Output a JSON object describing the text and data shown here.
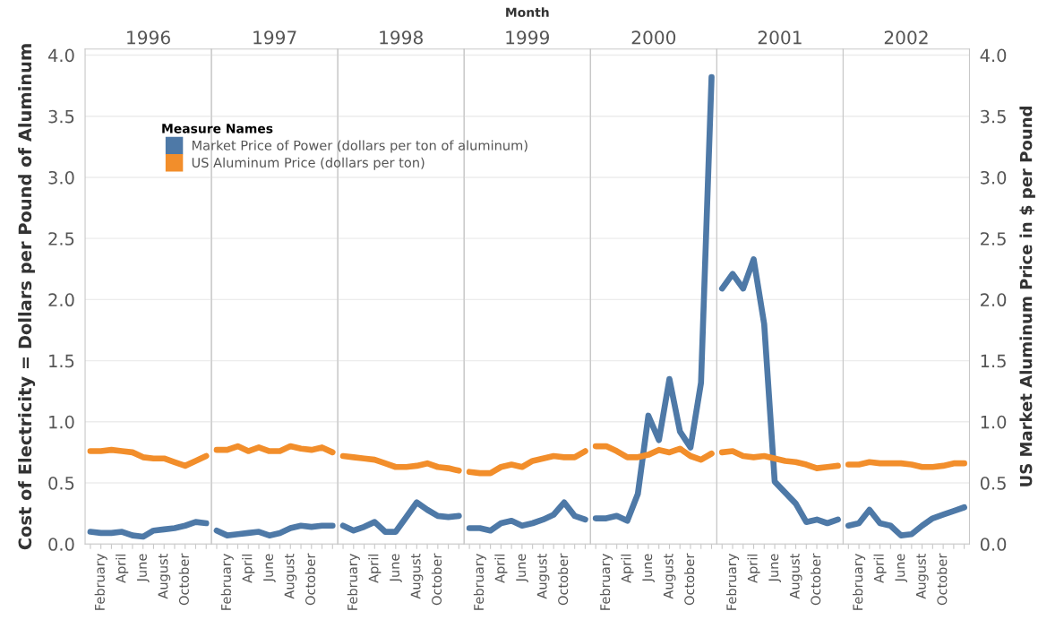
{
  "chart_data": [
    {
      "type": "line",
      "title": "1996",
      "ylabel": "Cost of Electricity = Dollars per Pound of Aluminum",
      "legend_title": "Measure Names",
      "legend": "top right",
      "grid": "y",
      "tick_labels": "xy",
      "categories": [
        null,
        "February",
        null,
        "April",
        null,
        "June",
        null,
        "August",
        null,
        "October",
        null,
        null
      ],
      "ylim": [
        0,
        4.05
      ],
      "yticks": [
        {
          "value": 0,
          "label": "0.0"
        },
        {
          "value": 0.5,
          "label": "0.5"
        },
        {
          "value": 1,
          "label": "1.0"
        },
        {
          "value": 1.5,
          "label": "1.5"
        },
        {
          "value": 2,
          "label": "2.0"
        },
        {
          "value": 2.5,
          "label": "2.5"
        },
        {
          "value": 3,
          "label": "3.0"
        },
        {
          "value": 3.5,
          "label": "3.5"
        },
        {
          "value": 4,
          "label": "4.0"
        }
      ],
      "series": [
        {
          "name": "Market Price of Power (dollars per ton of aluminum)",
          "color": "#4e79a7",
          "values": [
            0.1,
            0.09,
            0.09,
            0.1,
            0.07,
            0.06,
            0.11,
            0.12,
            0.13,
            0.15,
            0.18,
            0.17
          ]
        },
        {
          "name": "US Aluminum Price (dollars per ton)",
          "color": "#f28e2b",
          "values": [
            0.76,
            0.76,
            0.77,
            0.76,
            0.75,
            0.71,
            0.7,
            0.7,
            0.67,
            0.64,
            0.68,
            0.72
          ]
        }
      ]
    },
    {
      "type": "line",
      "title": "1997",
      "grid": "y",
      "tick_labels": "x",
      "categories": [
        null,
        "February",
        null,
        "April",
        null,
        "June",
        null,
        "August",
        null,
        "October",
        null,
        null
      ],
      "ylim": [
        0,
        4.05
      ],
      "yticks": [
        0,
        0.5,
        1,
        1.5,
        2,
        2.5,
        3,
        3.5,
        4
      ],
      "series": [
        {
          "color": "#4e79a7",
          "values": [
            0.11,
            0.07,
            0.08,
            0.09,
            0.1,
            0.07,
            0.09,
            0.13,
            0.15,
            0.14,
            0.15,
            0.15
          ]
        },
        {
          "color": "#f28e2b",
          "values": [
            0.77,
            0.77,
            0.8,
            0.76,
            0.79,
            0.76,
            0.76,
            0.8,
            0.78,
            0.77,
            0.79,
            0.75
          ]
        }
      ]
    },
    {
      "type": "line",
      "title": "1998",
      "grid": "y",
      "tick_labels": "x",
      "categories": [
        null,
        "February",
        null,
        "April",
        null,
        "June",
        null,
        "August",
        null,
        "October",
        null,
        null
      ],
      "ylim": [
        0,
        4.05
      ],
      "yticks": [
        0,
        0.5,
        1,
        1.5,
        2,
        2.5,
        3,
        3.5,
        4
      ],
      "series": [
        {
          "color": "#4e79a7",
          "values": [
            0.15,
            0.11,
            0.14,
            0.18,
            0.1,
            0.1,
            0.22,
            0.34,
            0.28,
            0.23,
            0.22,
            0.23
          ]
        },
        {
          "color": "#f28e2b",
          "values": [
            0.72,
            0.71,
            0.7,
            0.69,
            0.66,
            0.63,
            0.63,
            0.64,
            0.66,
            0.63,
            0.62,
            0.6
          ]
        }
      ]
    },
    {
      "type": "line",
      "title": "1999",
      "grid": "y",
      "tick_labels": "x",
      "annotations": [
        "Month"
      ],
      "categories": [
        null,
        "February",
        null,
        "April",
        null,
        "June",
        null,
        "August",
        null,
        "October",
        null,
        null
      ],
      "ylim": [
        0,
        4.05
      ],
      "yticks": [
        0,
        0.5,
        1,
        1.5,
        2,
        2.5,
        3,
        3.5,
        4
      ],
      "series": [
        {
          "color": "#4e79a7",
          "values": [
            0.13,
            0.13,
            0.11,
            0.17,
            0.19,
            0.15,
            0.17,
            0.2,
            0.24,
            0.34,
            0.23,
            0.2
          ]
        },
        {
          "color": "#f28e2b",
          "values": [
            0.59,
            0.58,
            0.58,
            0.63,
            0.65,
            0.63,
            0.68,
            0.7,
            0.72,
            0.71,
            0.71,
            0.76
          ]
        }
      ]
    },
    {
      "type": "line",
      "title": "2000",
      "grid": "y",
      "tick_labels": "x",
      "categories": [
        null,
        "February",
        null,
        "April",
        null,
        "June",
        null,
        "August",
        null,
        "October",
        null,
        null
      ],
      "ylim": [
        0,
        4.05
      ],
      "yticks": [
        0,
        0.5,
        1,
        1.5,
        2,
        2.5,
        3,
        3.5,
        4
      ],
      "series": [
        {
          "color": "#4e79a7",
          "values": [
            0.21,
            0.21,
            0.23,
            0.19,
            0.41,
            1.05,
            0.85,
            1.35,
            0.92,
            0.79,
            1.32,
            3.82
          ]
        },
        {
          "color": "#f28e2b",
          "values": [
            0.8,
            0.8,
            0.76,
            0.71,
            0.71,
            0.73,
            0.77,
            0.75,
            0.78,
            0.72,
            0.69,
            0.74
          ]
        }
      ]
    },
    {
      "type": "line",
      "title": "2001",
      "grid": "y",
      "tick_labels": "x",
      "categories": [
        null,
        "February",
        null,
        "April",
        null,
        "June",
        null,
        "August",
        null,
        "October",
        null,
        null
      ],
      "ylim": [
        0,
        4.05
      ],
      "yticks": [
        0,
        0.5,
        1,
        1.5,
        2,
        2.5,
        3,
        3.5,
        4
      ],
      "series": [
        {
          "color": "#4e79a7",
          "values": [
            2.09,
            2.21,
            2.09,
            2.33,
            1.8,
            0.51,
            0.42,
            0.33,
            0.18,
            0.2,
            0.17,
            0.2
          ]
        },
        {
          "color": "#f28e2b",
          "values": [
            0.75,
            0.76,
            0.72,
            0.71,
            0.72,
            0.7,
            0.68,
            0.67,
            0.65,
            0.62,
            0.63,
            0.64
          ]
        }
      ]
    },
    {
      "type": "line",
      "title": "2002",
      "y2label": "US Market Aluminum Price in $ per Pound",
      "grid": "y",
      "tick_labels": "xy",
      "categories": [
        null,
        "February",
        null,
        "April",
        null,
        "June",
        null,
        "August",
        null,
        "October",
        null,
        null
      ],
      "ylim": [
        0,
        4.05
      ],
      "yticks": [
        {
          "value": 0,
          "label": "0.0"
        },
        {
          "value": 0.5,
          "label": "0.5"
        },
        {
          "value": 1,
          "label": "1.0"
        },
        {
          "value": 1.5,
          "label": "1.5"
        },
        {
          "value": 2,
          "label": "2.0"
        },
        {
          "value": 2.5,
          "label": "2.5"
        },
        {
          "value": 3,
          "label": "3.0"
        },
        {
          "value": 3.5,
          "label": "3.5"
        },
        {
          "value": 4,
          "label": "4.0"
        }
      ],
      "series": [
        {
          "color": "#4e79a7",
          "values": [
            0.15,
            0.17,
            0.28,
            0.17,
            0.15,
            0.07,
            0.08,
            0.15,
            0.21,
            0.24,
            0.27,
            0.3
          ]
        },
        {
          "color": "#f28e2b",
          "values": [
            0.65,
            0.65,
            0.67,
            0.66,
            0.66,
            0.66,
            0.65,
            0.63,
            0.63,
            0.64,
            0.66,
            0.66
          ]
        }
      ]
    }
  ]
}
